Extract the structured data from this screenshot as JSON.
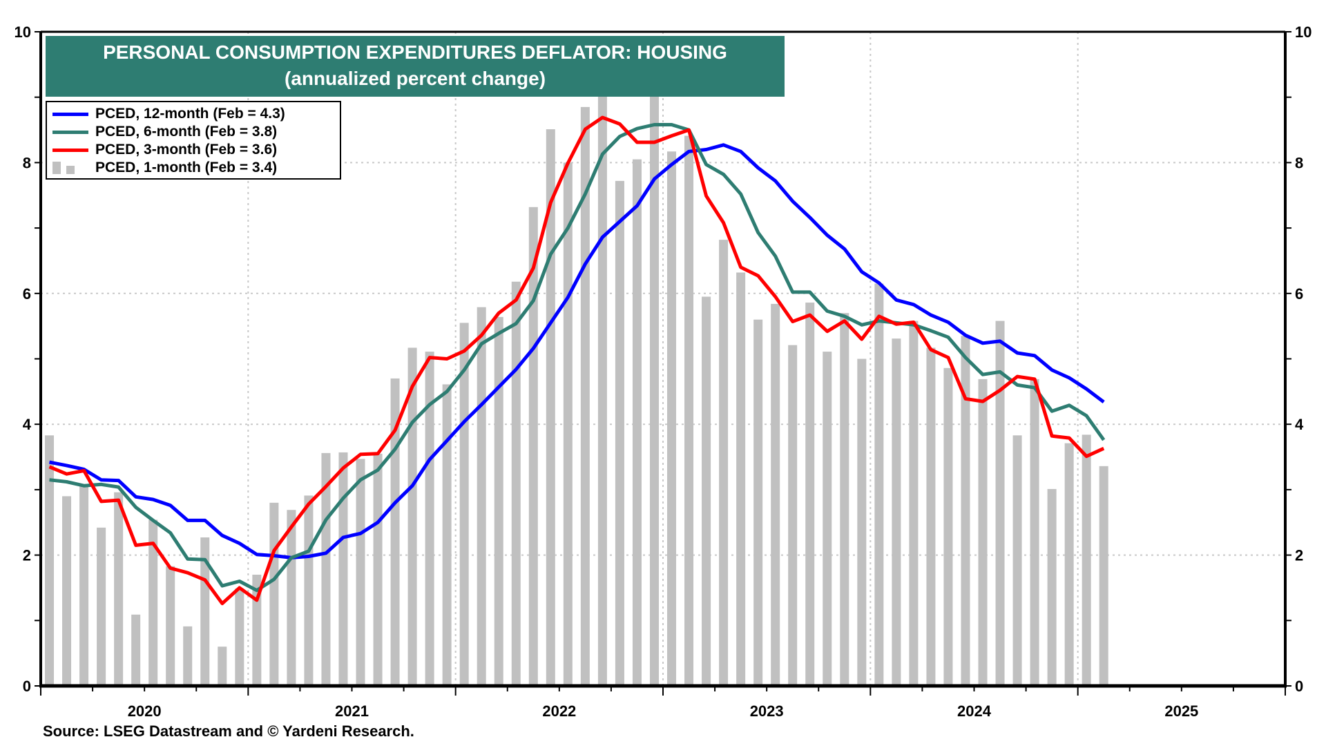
{
  "chart_data": {
    "type": "bar",
    "title": "PERSONAL CONSUMPTION EXPENDITURES DEFLATOR: HOUSING",
    "subtitle": "(annualized percent change)",
    "xlabel": "",
    "ylabel": "",
    "ylim": [
      0,
      10
    ],
    "y_ticks": [
      "0",
      "2",
      "4",
      "6",
      "8",
      "10"
    ],
    "x_range": [
      "2020-01",
      "2025-12"
    ],
    "x_tick_labels": [
      "2020",
      "2021",
      "2022",
      "2023",
      "2024",
      "2025"
    ],
    "grid": true,
    "legend_position": "top-left",
    "x_start": "2020-01",
    "series": [
      {
        "name": "PCED, 12-month (Feb = 4.3)",
        "kind": "line",
        "color": "#0000ff",
        "values": [
          3.42,
          3.37,
          3.31,
          3.15,
          3.14,
          2.89,
          2.85,
          2.76,
          2.53,
          2.53,
          2.3,
          2.18,
          2.01,
          1.99,
          1.96,
          1.98,
          2.03,
          2.27,
          2.33,
          2.5,
          2.8,
          3.06,
          3.46,
          3.75,
          4.04,
          4.3,
          4.57,
          4.84,
          5.16,
          5.55,
          5.94,
          6.45,
          6.86,
          7.1,
          7.34,
          7.75,
          7.97,
          8.17,
          8.2,
          8.27,
          8.17,
          7.92,
          7.72,
          7.41,
          7.16,
          6.89,
          6.68,
          6.33,
          6.16,
          5.9,
          5.83,
          5.67,
          5.56,
          5.36,
          5.24,
          5.27,
          5.09,
          5.05,
          4.83,
          4.71,
          4.54,
          4.34
        ]
      },
      {
        "name": "PCED, 6-month (Feb = 3.8)",
        "kind": "line",
        "color": "#2e7d72",
        "values": [
          3.15,
          3.12,
          3.06,
          3.08,
          3.04,
          2.73,
          2.53,
          2.34,
          1.94,
          1.93,
          1.53,
          1.6,
          1.46,
          1.63,
          1.96,
          2.06,
          2.54,
          2.87,
          3.15,
          3.3,
          3.62,
          4.03,
          4.3,
          4.5,
          4.83,
          5.23,
          5.39,
          5.54,
          5.89,
          6.6,
          7.0,
          7.52,
          8.13,
          8.4,
          8.52,
          8.58,
          8.58,
          8.5,
          7.97,
          7.82,
          7.52,
          6.93,
          6.57,
          6.02,
          6.02,
          5.73,
          5.65,
          5.52,
          5.58,
          5.55,
          5.52,
          5.43,
          5.33,
          5.02,
          4.76,
          4.8,
          4.6,
          4.56,
          4.2,
          4.29,
          4.13,
          3.76
        ]
      },
      {
        "name": "PCED, 3-month (Feb = 3.6)",
        "kind": "line",
        "color": "#ff0000",
        "values": [
          3.35,
          3.24,
          3.29,
          2.82,
          2.84,
          2.15,
          2.18,
          1.8,
          1.73,
          1.62,
          1.26,
          1.5,
          1.31,
          2.07,
          2.43,
          2.78,
          3.05,
          3.33,
          3.54,
          3.55,
          3.91,
          4.58,
          5.02,
          5.0,
          5.12,
          5.36,
          5.7,
          5.9,
          6.39,
          7.39,
          7.99,
          8.51,
          8.69,
          8.59,
          8.31,
          8.31,
          8.41,
          8.5,
          7.49,
          7.08,
          6.4,
          6.27,
          5.95,
          5.57,
          5.67,
          5.42,
          5.58,
          5.3,
          5.65,
          5.53,
          5.56,
          5.14,
          5.02,
          4.39,
          4.35,
          4.52,
          4.73,
          4.69,
          3.82,
          3.79,
          3.51,
          3.63
        ]
      },
      {
        "name": "PCED, 1-month (Feb = 3.4)",
        "kind": "bar",
        "color": "#c0c0c0",
        "values": [
          3.83,
          2.9,
          3.06,
          2.42,
          2.96,
          1.09,
          2.54,
          1.83,
          0.91,
          2.27,
          0.6,
          1.49,
          1.7,
          2.8,
          2.69,
          2.91,
          3.56,
          3.57,
          3.47,
          3.55,
          4.7,
          5.17,
          5.11,
          4.61,
          5.55,
          5.79,
          5.64,
          6.18,
          7.32,
          8.51,
          8.0,
          8.85,
          9.3,
          7.72,
          8.05,
          9.3,
          8.17,
          8.41,
          5.95,
          6.82,
          6.32,
          5.6,
          5.84,
          5.21,
          5.86,
          5.11,
          5.7,
          5.0,
          6.15,
          5.31,
          5.58,
          5.17,
          4.86,
          5.35,
          4.69,
          5.58,
          3.83,
          4.69,
          3.01,
          3.71,
          3.84,
          3.36
        ]
      }
    ]
  },
  "source": "Source: LSEG Datastream and © Yardeni Research."
}
